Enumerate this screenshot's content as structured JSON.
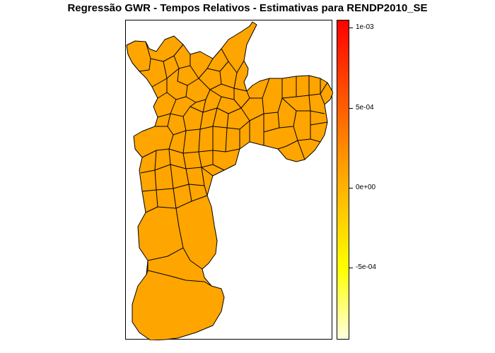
{
  "title": "Regressão GWR - Tempos Relativos - Estimativas para RENDP2010_SE",
  "map": {
    "fill_color": "#ffa500",
    "border_color": "#000000"
  },
  "legend": {
    "gradient_colors": [
      "#ffffe0",
      "#ffff00",
      "#ffa500",
      "#ff0000"
    ],
    "ticks": [
      {
        "label": "1e-03",
        "value": 0.001
      },
      {
        "label": "5e-04",
        "value": 0.0005
      },
      {
        "label": "0e+00",
        "value": 0
      },
      {
        "label": "-5e-04",
        "value": -0.0005
      }
    ],
    "range": [
      -0.00095,
      0.00105
    ]
  }
}
